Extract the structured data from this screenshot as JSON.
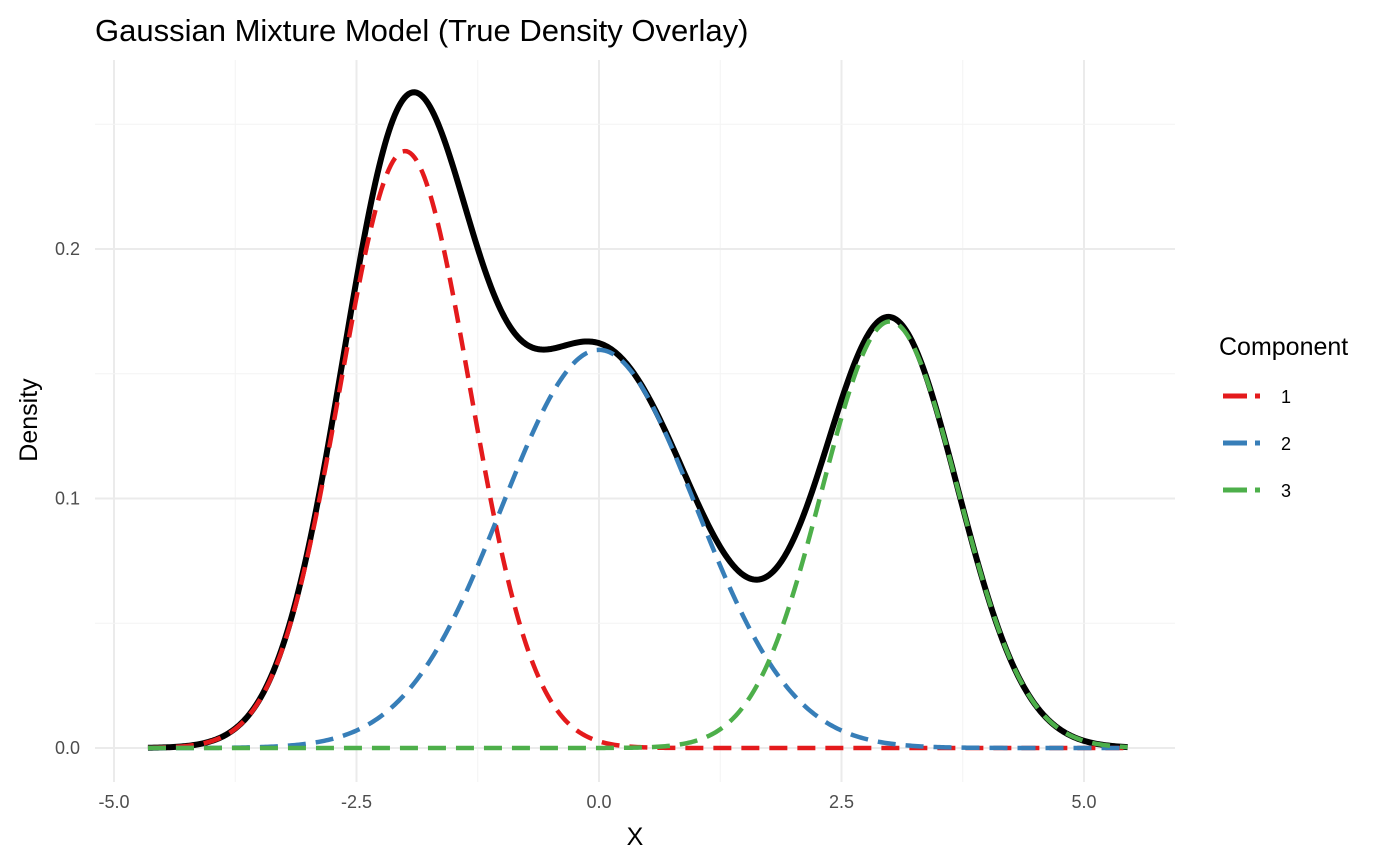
{
  "chart_data": {
    "type": "line",
    "title": "Gaussian Mixture Model (True Density Overlay)",
    "xlabel": "X",
    "ylabel": "Density",
    "xlim": [
      -4.65,
      5.45
    ],
    "ylim": [
      0,
      0.26
    ],
    "x_ticks": [
      -5.0,
      -2.5,
      0.0,
      2.5,
      5.0
    ],
    "x_tick_labels": [
      "-5.0",
      "-2.5",
      "0.0",
      "2.5",
      "5.0"
    ],
    "y_ticks": [
      0.0,
      0.1,
      0.2
    ],
    "y_tick_labels": [
      "0.0",
      "0.1",
      "0.2"
    ],
    "grid": true,
    "legend": {
      "title": "Component",
      "position": "right",
      "entries": [
        {
          "label": "1",
          "color": "#e41a1c"
        },
        {
          "label": "2",
          "color": "#377eb8"
        },
        {
          "label": "3",
          "color": "#4daf4a"
        }
      ]
    },
    "components": [
      {
        "name": "1",
        "color": "#e41a1c",
        "weight": 0.4,
        "mean": -2.0,
        "sd": 0.667
      },
      {
        "name": "2",
        "color": "#377eb8",
        "weight": 0.4,
        "mean": 0.0,
        "sd": 1.0
      },
      {
        "name": "3",
        "color": "#4daf4a",
        "weight": 0.3,
        "mean": 3.0,
        "sd": 0.7
      }
    ],
    "total_density": {
      "color": "#000000",
      "style": "solid"
    },
    "component_line_style": "dashed"
  }
}
